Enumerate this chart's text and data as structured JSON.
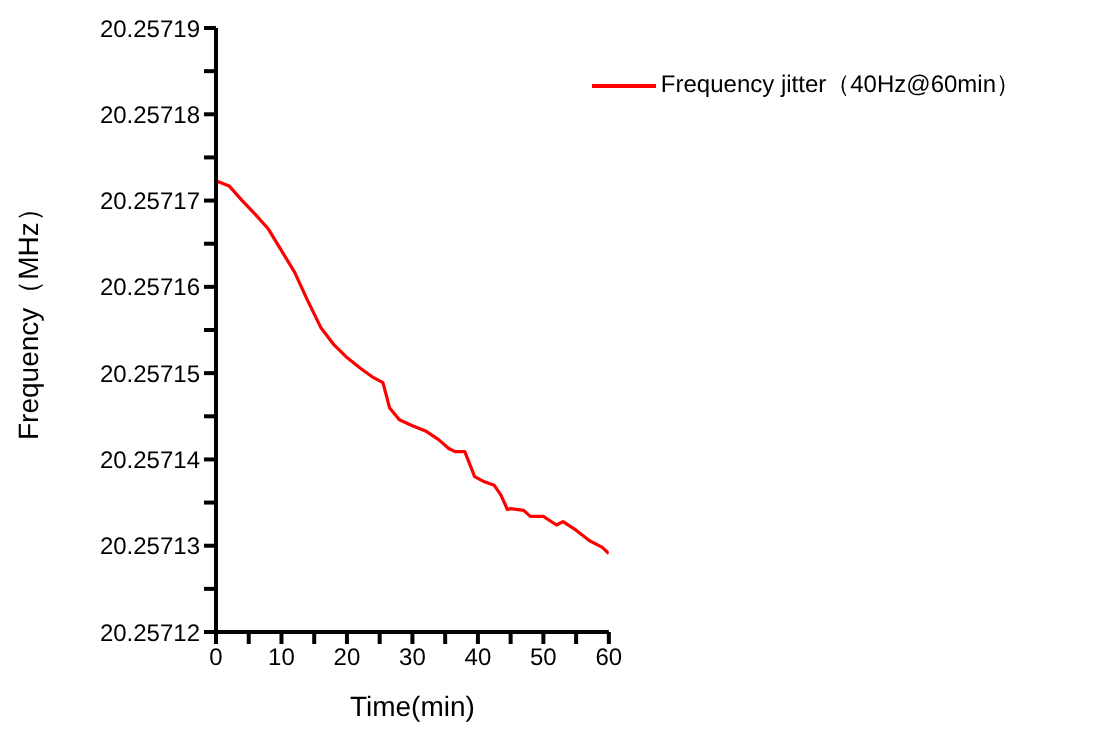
{
  "chart_data": {
    "type": "line",
    "xlabel": "Time(min)",
    "ylabel": "Frequency（MHz）",
    "x": [
      0,
      2,
      4,
      6,
      8,
      10,
      12,
      14,
      16,
      18,
      20,
      22,
      24,
      25.5,
      26.5,
      28,
      30,
      32,
      34,
      35.5,
      36.5,
      38,
      39.5,
      41,
      42.5,
      43.5,
      44.5,
      45,
      47,
      48,
      50,
      52,
      53,
      55,
      57,
      59,
      60
    ],
    "series": [
      {
        "name": "Frequency jitter（40Hz@60min）",
        "color": "#ff0000",
        "values": [
          20.2571723,
          20.2571717,
          20.25717,
          20.2571684,
          20.2571667,
          20.2571642,
          20.2571617,
          20.2571584,
          20.2571553,
          20.2571533,
          20.2571518,
          20.2571506,
          20.2571495,
          20.2571489,
          20.257146,
          20.2571446,
          20.2571439,
          20.2571433,
          20.2571423,
          20.2571413,
          20.2571409,
          20.2571409,
          20.257138,
          20.2571374,
          20.257137,
          20.2571359,
          20.2571342,
          20.2571343,
          20.2571341,
          20.2571334,
          20.2571334,
          20.2571324,
          20.2571328,
          20.2571318,
          20.2571306,
          20.2571298,
          20.2571291
        ]
      }
    ],
    "xlim": [
      0,
      60
    ],
    "xticks": [
      0,
      {
        "value": 5,
        "label": null
      },
      10,
      {
        "value": 15,
        "label": null
      },
      20,
      {
        "value": 25,
        "label": null
      },
      30,
      {
        "value": 35,
        "label": null
      },
      40,
      {
        "value": 45,
        "label": null
      },
      50,
      {
        "value": 55,
        "label": null
      },
      60
    ],
    "ylim": [
      20.25712,
      20.25719
    ],
    "yticks": [
      20.25712,
      {
        "value": 20.257125,
        "label": null
      },
      20.25713,
      {
        "value": 20.257135,
        "label": null
      },
      20.25714,
      {
        "value": 20.257145,
        "label": null
      },
      20.25715,
      {
        "value": 20.257155,
        "label": null
      },
      20.25716,
      {
        "value": 20.257165,
        "label": null
      },
      20.25717,
      {
        "value": 20.257175,
        "label": null
      },
      20.25718,
      {
        "value": 20.257185,
        "label": null
      },
      20.25719
    ],
    "grid": false,
    "legend": "top right",
    "marker": "none",
    "line_style": "solid"
  }
}
